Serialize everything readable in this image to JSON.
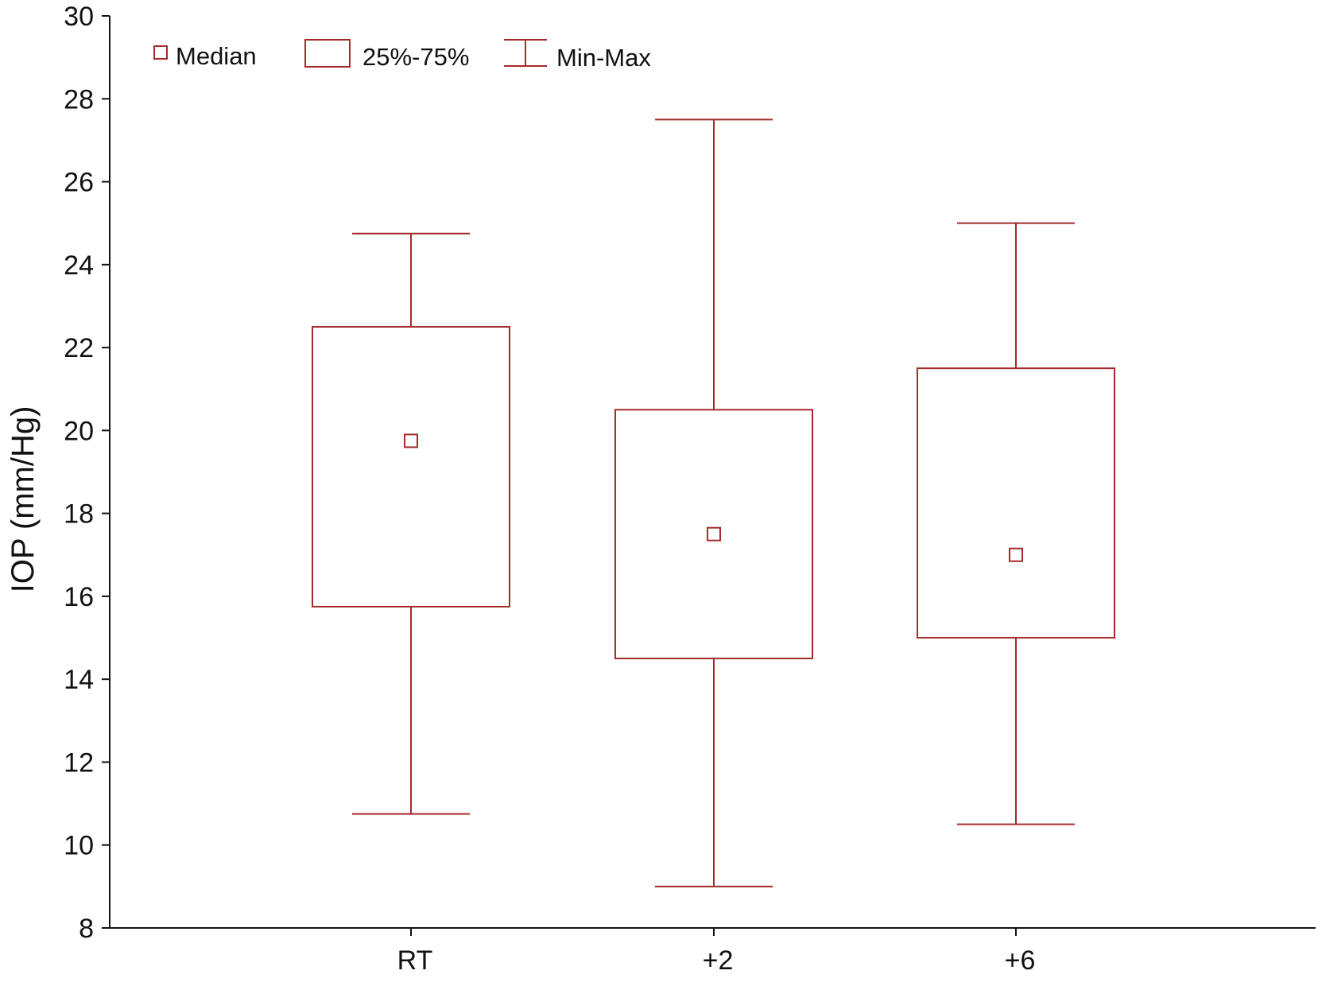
{
  "chart_data": {
    "type": "box",
    "title": "",
    "xlabel": "",
    "ylabel": "IOP (mm/Hg)",
    "ylim": [
      8,
      30
    ],
    "yticks": [
      8,
      10,
      12,
      14,
      16,
      18,
      20,
      22,
      24,
      26,
      28,
      30
    ],
    "categories": [
      "RT",
      "+2",
      "+6"
    ],
    "boxes": [
      {
        "category": "RT",
        "min": 10.75,
        "q1": 15.75,
        "median": 19.75,
        "q3": 22.5,
        "max": 24.75
      },
      {
        "category": "+2",
        "min": 9.0,
        "q1": 14.5,
        "median": 17.5,
        "q3": 20.5,
        "max": 27.5
      },
      {
        "category": "+6",
        "min": 10.5,
        "q1": 15.0,
        "median": 17.0,
        "q3": 21.5,
        "max": 25.0
      }
    ],
    "legend": {
      "placement": "top-left",
      "entries": [
        {
          "symbol": "square",
          "label": "Median"
        },
        {
          "symbol": "box",
          "label": "25%-75%"
        },
        {
          "symbol": "whisker",
          "label": "Min-Max"
        }
      ]
    },
    "color": "#a52a2a",
    "grid": false
  }
}
